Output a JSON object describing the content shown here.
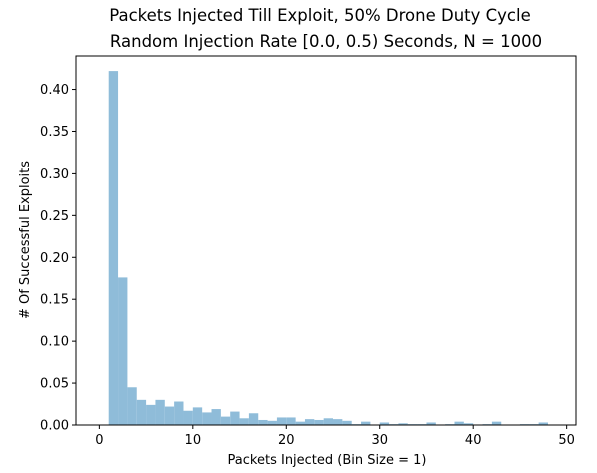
{
  "chart_data": {
    "type": "bar",
    "title_line1": "Packets Injected Till Exploit, 50% Drone Duty Cycle",
    "title_line2": "Random Injection Rate [0.0, 0.5) Seconds, N = 1000",
    "xlabel": "Packets Injected (Bin Size = 1)",
    "ylabel": "# Of Successful Exploits",
    "xlim": [
      -2.5,
      51
    ],
    "ylim": [
      0,
      0.44
    ],
    "xticks": [
      0,
      10,
      20,
      30,
      40,
      50
    ],
    "xtick_labels": [
      "0",
      "10",
      "20",
      "30",
      "40",
      "50"
    ],
    "yticks": [
      0.0,
      0.05,
      0.1,
      0.15,
      0.2,
      0.25,
      0.3,
      0.35,
      0.4
    ],
    "ytick_labels": [
      "0.00",
      "0.05",
      "0.10",
      "0.15",
      "0.20",
      "0.25",
      "0.30",
      "0.35",
      "0.40"
    ],
    "grid": false,
    "bar_color": "#8fbcd9",
    "bin_width": 1,
    "bin_starts": [
      1,
      2,
      3,
      4,
      5,
      6,
      7,
      8,
      9,
      10,
      11,
      12,
      13,
      14,
      15,
      16,
      17,
      18,
      19,
      20,
      21,
      22,
      23,
      24,
      25,
      26,
      27,
      28,
      29,
      30,
      31,
      32,
      33,
      34,
      35,
      36,
      37,
      38,
      39,
      40,
      41,
      42,
      43,
      44,
      45,
      46,
      47,
      48
    ],
    "values": [
      0.422,
      0.176,
      0.045,
      0.03,
      0.024,
      0.03,
      0.022,
      0.028,
      0.017,
      0.021,
      0.015,
      0.019,
      0.01,
      0.016,
      0.008,
      0.014,
      0.006,
      0.005,
      0.009,
      0.009,
      0.004,
      0.007,
      0.006,
      0.008,
      0.007,
      0.005,
      0.001,
      0.004,
      0.0,
      0.003,
      0.001,
      0.002,
      0.001,
      0.001,
      0.003,
      0.0,
      0.001,
      0.004,
      0.002,
      0.0,
      0.001,
      0.004,
      0.0,
      0.0,
      0.001,
      0.001,
      0.003,
      0.0
    ]
  }
}
